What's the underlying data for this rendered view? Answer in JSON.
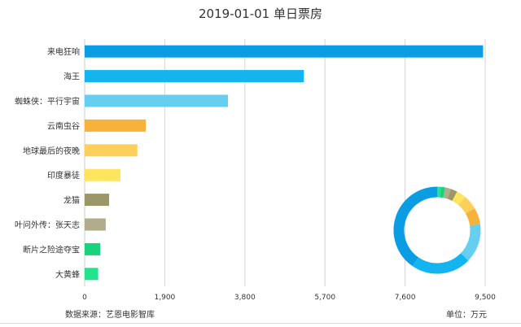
{
  "chart_data": {
    "type": "bar",
    "orientation": "horizontal",
    "title": "2019-01-01 单日票房",
    "categories": [
      "来电狂响",
      "海王",
      "蜘蛛侠：平行宇宙",
      "云南虫谷",
      "地球最后的夜晚",
      "印度暴徒",
      "龙猫",
      "叶问外传：张天志",
      "断片之险途夺宝",
      "大黄蜂"
    ],
    "values": [
      9450,
      5200,
      3400,
      1450,
      1250,
      850,
      580,
      500,
      370,
      320
    ],
    "colors": [
      "#0b9de3",
      "#12b5f0",
      "#66cfef",
      "#f7b23b",
      "#ffcf5c",
      "#ffe45e",
      "#9b9769",
      "#b1ad8a",
      "#1ad27e",
      "#23e38d"
    ],
    "xticks": [
      "0",
      "1,900",
      "3,800",
      "5,700",
      "7,600",
      "9,500"
    ],
    "xlim": [
      0,
      9500
    ],
    "grid": true,
    "inset_donut": true
  },
  "source_text": "数据来源：艺恩电影智库",
  "unit_text": "单位：万元"
}
